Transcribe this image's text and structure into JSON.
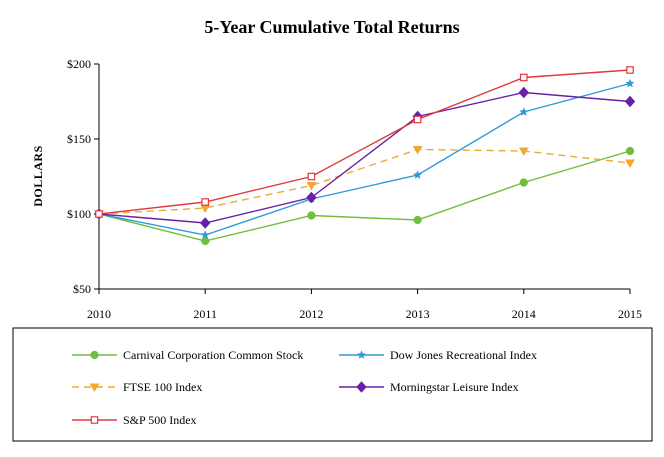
{
  "chart_data": {
    "type": "line",
    "title": "5-Year Cumulative Total Returns",
    "xlabel": "",
    "ylabel": "DOLLARS",
    "categories": [
      "2010",
      "2011",
      "2012",
      "2013",
      "2014",
      "2015"
    ],
    "yticks": [
      "$50",
      "$100",
      "$150",
      "$200"
    ],
    "ylim": [
      50,
      200
    ],
    "grid": false,
    "legend_position": "bottom",
    "series": [
      {
        "name": "Carnival Corporation Common Stock",
        "values": [
          100,
          82,
          99,
          96,
          121,
          142
        ],
        "color": "#6fbe3c",
        "marker": "circle",
        "dash": "solid"
      },
      {
        "name": "Dow Jones Recreational Index",
        "values": [
          100,
          86,
          110,
          126,
          168,
          187
        ],
        "color": "#2e9ad9",
        "marker": "star",
        "dash": "solid"
      },
      {
        "name": "FTSE 100 Index",
        "values": [
          100,
          104,
          119,
          143,
          142,
          134
        ],
        "color": "#f0a830",
        "marker": "triangle-down",
        "dash": "dashed"
      },
      {
        "name": "Morningstar Leisure Index",
        "values": [
          100,
          94,
          111,
          165,
          181,
          175
        ],
        "color": "#6a1fa8",
        "marker": "diamond",
        "dash": "solid"
      },
      {
        "name": "S&P 500 Index",
        "values": [
          100,
          108,
          125,
          163,
          191,
          196
        ],
        "color": "#e0393a",
        "marker": "square-open",
        "dash": "solid"
      }
    ]
  }
}
